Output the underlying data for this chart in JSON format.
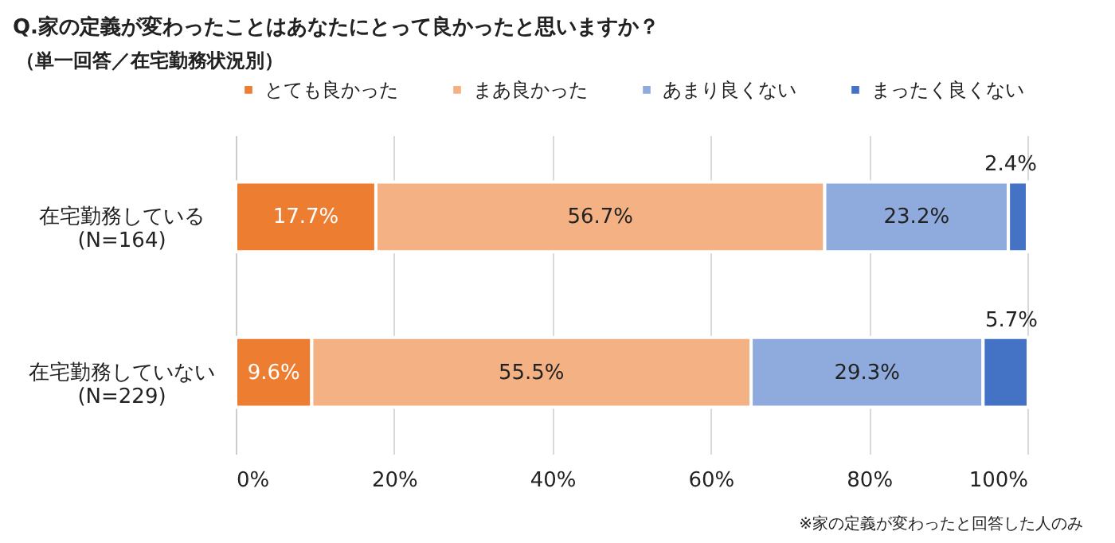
{
  "chart_data": {
    "type": "bar",
    "orientation": "horizontal",
    "stacked": true,
    "title": "Q.家の定義が変わったことはあなたにとって良かったと思いますか？",
    "subtitle": "（単一回答／在宅勤務状況別）",
    "categories": [
      "在宅勤務している\n(N=164)",
      "在宅勤務していない\n(N=229)"
    ],
    "series": [
      {
        "name": "とても良かった",
        "color": "#ed7d31",
        "values": [
          17.7,
          9.6
        ],
        "value_labels": [
          "17.7%",
          "9.6%"
        ]
      },
      {
        "name": "まあ良かった",
        "color": "#f4b183",
        "values": [
          56.7,
          55.5
        ],
        "value_labels": [
          "56.7%",
          "55.5%"
        ]
      },
      {
        "name": "あまり良くない",
        "color": "#8faadc",
        "values": [
          23.2,
          29.3
        ],
        "value_labels": [
          "23.2%",
          "29.3%"
        ]
      },
      {
        "name": "まったく良くない",
        "color": "#4472c4",
        "values": [
          2.4,
          5.7
        ],
        "value_labels": [
          "2.4%",
          "5.7%"
        ]
      }
    ],
    "xlim": [
      0,
      100
    ],
    "xticks": [
      {
        "value": 0,
        "label": "0%"
      },
      {
        "value": 20,
        "label": "20%"
      },
      {
        "value": 40,
        "label": "40%"
      },
      {
        "value": 60,
        "label": "60%"
      },
      {
        "value": 80,
        "label": "80%"
      },
      {
        "value": 100,
        "label": "100%"
      }
    ],
    "grid": "x",
    "legend": "top",
    "annotations": [
      "※家の定義が変わったと回答した人のみ"
    ]
  }
}
